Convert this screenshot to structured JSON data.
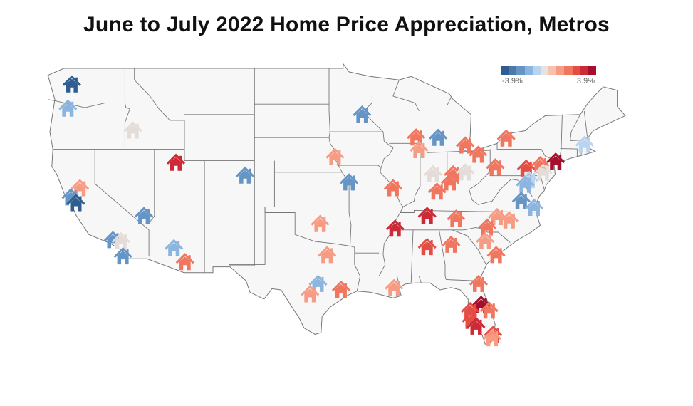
{
  "title": "June to July 2022 Home Price Appreciation, Metros",
  "legend": {
    "min_label": "-3.9%",
    "max_label": "3.9%",
    "colors": [
      "#2f5d8f",
      "#4a79aa",
      "#6595c5",
      "#8bb5de",
      "#b9d4ee",
      "#e3e3e3",
      "#f9c0ac",
      "#f69c84",
      "#f0765f",
      "#e34d44",
      "#cc2a36",
      "#a50f2b"
    ]
  },
  "map": {
    "land_color": "#f7f7f7",
    "border_color": "#777777",
    "markers": [
      {
        "id": "seattle",
        "lon": -122.3,
        "lat": 47.6,
        "color": "#2f5d8f"
      },
      {
        "id": "portland",
        "lon": -122.7,
        "lat": 45.5,
        "color": "#8bb5de"
      },
      {
        "id": "boise",
        "lon": -116.2,
        "lat": 43.6,
        "color": "#e3dcd8"
      },
      {
        "id": "salt-lake-city",
        "lon": -111.9,
        "lat": 40.8,
        "color": "#cc2a36"
      },
      {
        "id": "sacramento",
        "lon": -121.5,
        "lat": 38.6,
        "color": "#f69c84"
      },
      {
        "id": "san-francisco",
        "lon": -122.4,
        "lat": 37.8,
        "color": "#6595c5"
      },
      {
        "id": "san-jose",
        "lon": -121.9,
        "lat": 37.3,
        "color": "#2f5d8f"
      },
      {
        "id": "las-vegas",
        "lon": -115.1,
        "lat": 36.2,
        "color": "#6595c5"
      },
      {
        "id": "los-angeles",
        "lon": -118.2,
        "lat": 34.1,
        "color": "#6595c5"
      },
      {
        "id": "riverside",
        "lon": -117.4,
        "lat": 34.0,
        "color": "#e3dcd8"
      },
      {
        "id": "san-diego",
        "lon": -117.2,
        "lat": 32.7,
        "color": "#6595c5"
      },
      {
        "id": "phoenix",
        "lon": -112.1,
        "lat": 33.4,
        "color": "#8bb5de"
      },
      {
        "id": "tucson",
        "lon": -111.0,
        "lat": 32.2,
        "color": "#f0765f"
      },
      {
        "id": "denver",
        "lon": -104.99,
        "lat": 39.7,
        "color": "#6595c5"
      },
      {
        "id": "minneapolis",
        "lon": -93.3,
        "lat": 44.98,
        "color": "#6595c5"
      },
      {
        "id": "omaha",
        "lon": -96.0,
        "lat": 41.3,
        "color": "#f69c84"
      },
      {
        "id": "kansas-city",
        "lon": -94.6,
        "lat": 39.1,
        "color": "#6595c5"
      },
      {
        "id": "st-louis",
        "lon": -90.2,
        "lat": 38.6,
        "color": "#f0765f"
      },
      {
        "id": "milwaukee",
        "lon": -87.9,
        "lat": 43.0,
        "color": "#f0765f"
      },
      {
        "id": "chicago",
        "lon": -87.6,
        "lat": 41.9,
        "color": "#f69c84"
      },
      {
        "id": "grand-rapids",
        "lon": -85.7,
        "lat": 42.96,
        "color": "#6595c5"
      },
      {
        "id": "detroit",
        "lon": -83.0,
        "lat": 42.3,
        "color": "#f0765f"
      },
      {
        "id": "indianapolis",
        "lon": -86.2,
        "lat": 39.8,
        "color": "#e3dcd8"
      },
      {
        "id": "dayton",
        "lon": -84.2,
        "lat": 39.8,
        "color": "#f0765f"
      },
      {
        "id": "columbus",
        "lon": -83.0,
        "lat": 39.96,
        "color": "#e3dcd8"
      },
      {
        "id": "cincinnati",
        "lon": -84.5,
        "lat": 39.1,
        "color": "#f0765f"
      },
      {
        "id": "cleveland",
        "lon": -81.7,
        "lat": 41.5,
        "color": "#f0765f"
      },
      {
        "id": "louisville",
        "lon": -85.8,
        "lat": 38.3,
        "color": "#f0765f"
      },
      {
        "id": "pittsburgh",
        "lon": -79.99,
        "lat": 40.4,
        "color": "#f0765f"
      },
      {
        "id": "buffalo",
        "lon": -78.9,
        "lat": 42.9,
        "color": "#f0765f"
      },
      {
        "id": "harrisburg",
        "lon": -76.9,
        "lat": 40.3,
        "color": "#e34d44"
      },
      {
        "id": "allentown",
        "lon": -75.5,
        "lat": 40.6,
        "color": "#f0765f"
      },
      {
        "id": "new-york",
        "lon": -73.95,
        "lat": 40.9,
        "color": "#a50f2b"
      },
      {
        "id": "boston",
        "lon": -71.06,
        "lat": 42.36,
        "color": "#b9d4ee"
      },
      {
        "id": "philadelphia",
        "lon": -75.2,
        "lat": 39.95,
        "color": "#e3dcd8"
      },
      {
        "id": "baltimore",
        "lon": -76.6,
        "lat": 39.3,
        "color": "#b9d4ee"
      },
      {
        "id": "washington",
        "lon": -77.0,
        "lat": 38.9,
        "color": "#8bb5de"
      },
      {
        "id": "richmond",
        "lon": -77.4,
        "lat": 37.5,
        "color": "#6595c5"
      },
      {
        "id": "virginia-beach",
        "lon": -76.1,
        "lat": 36.9,
        "color": "#8bb5de"
      },
      {
        "id": "nashville",
        "lon": -86.8,
        "lat": 36.2,
        "color": "#cc2a36"
      },
      {
        "id": "memphis",
        "lon": -90.0,
        "lat": 35.1,
        "color": "#cc2a36"
      },
      {
        "id": "raleigh",
        "lon": -78.6,
        "lat": 35.8,
        "color": "#f69c84"
      },
      {
        "id": "greensboro",
        "lon": -79.8,
        "lat": 36.1,
        "color": "#f69c84"
      },
      {
        "id": "charlotte",
        "lon": -80.8,
        "lat": 35.2,
        "color": "#f0765f"
      },
      {
        "id": "knoxville",
        "lon": -83.9,
        "lat": 35.96,
        "color": "#f0765f"
      },
      {
        "id": "columbia",
        "lon": -81.0,
        "lat": 34.0,
        "color": "#f69c84"
      },
      {
        "id": "charleston",
        "lon": -79.9,
        "lat": 32.8,
        "color": "#f0765f"
      },
      {
        "id": "atlanta",
        "lon": -84.4,
        "lat": 33.7,
        "color": "#f0765f"
      },
      {
        "id": "birmingham",
        "lon": -86.8,
        "lat": 33.5,
        "color": "#e34d44"
      },
      {
        "id": "jacksonville",
        "lon": -81.65,
        "lat": 30.3,
        "color": "#f0765f"
      },
      {
        "id": "oklahoma-city",
        "lon": -97.5,
        "lat": 35.5,
        "color": "#f69c84"
      },
      {
        "id": "dallas",
        "lon": -96.8,
        "lat": 32.8,
        "color": "#f69c84"
      },
      {
        "id": "austin",
        "lon": -97.7,
        "lat": 30.3,
        "color": "#8bb5de"
      },
      {
        "id": "san-antonio",
        "lon": -98.5,
        "lat": 29.4,
        "color": "#f69c84"
      },
      {
        "id": "houston",
        "lon": -95.4,
        "lat": 29.8,
        "color": "#f0765f"
      },
      {
        "id": "new-orleans",
        "lon": -90.1,
        "lat": 29.95,
        "color": "#f69c84"
      },
      {
        "id": "orlando",
        "lon": -81.4,
        "lat": 28.5,
        "color": "#a50f2b"
      },
      {
        "id": "tampa",
        "lon": -82.5,
        "lat": 27.95,
        "color": "#e34d44"
      },
      {
        "id": "palm-bay",
        "lon": -80.6,
        "lat": 28.0,
        "color": "#f0765f"
      },
      {
        "id": "north-port",
        "lon": -82.4,
        "lat": 27.1,
        "color": "#e34d44"
      },
      {
        "id": "cape-coral",
        "lon": -81.9,
        "lat": 26.6,
        "color": "#cc2a36"
      },
      {
        "id": "miami",
        "lon": -80.2,
        "lat": 25.9,
        "color": "#e34d44"
      },
      {
        "id": "miami-2",
        "lon": -80.3,
        "lat": 25.6,
        "color": "#f69c84"
      }
    ]
  }
}
